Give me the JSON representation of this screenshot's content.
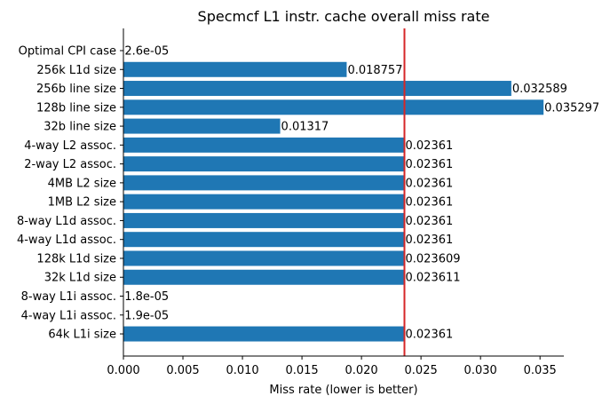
{
  "chart_data": {
    "type": "bar",
    "orientation": "horizontal",
    "title": "Specmcf L1 instr. cache overall miss rate",
    "xlabel": "Miss rate (lower is better)",
    "ylabel": "",
    "xlim": [
      0,
      0.037
    ],
    "xticks": [
      "0.000",
      "0.005",
      "0.010",
      "0.015",
      "0.020",
      "0.025",
      "0.030",
      "0.035"
    ],
    "bar_color": "#1f77b4",
    "reference_line": {
      "value": 0.02361,
      "color": "#d62728"
    },
    "grid": false,
    "categories": [
      "Optimal CPI case",
      "256k L1d size",
      "256b line size",
      "128b line size",
      "32b line size",
      "4-way L2 assoc.",
      "2-way L2 assoc.",
      "4MB L2 size",
      "1MB L2 size",
      "8-way L1d assoc.",
      "4-way L1d assoc.",
      "128k L1d size",
      "32k L1d size",
      "8-way L1i assoc.",
      "4-way L1i assoc.",
      "64k L1i size"
    ],
    "values": [
      2.6e-05,
      0.018757,
      0.032589,
      0.035297,
      0.01317,
      0.02361,
      0.02361,
      0.02361,
      0.02361,
      0.02361,
      0.02361,
      0.023609,
      0.023611,
      1.8e-05,
      1.9e-05,
      0.02361
    ],
    "value_labels": [
      "2.6e-05",
      "0.018757",
      "0.032589",
      "0.035297",
      "0.01317",
      "0.02361",
      "0.02361",
      "0.02361",
      "0.02361",
      "0.02361",
      "0.02361",
      "0.023609",
      "0.023611",
      "1.8e-05",
      "1.9e-05",
      "0.02361"
    ]
  }
}
